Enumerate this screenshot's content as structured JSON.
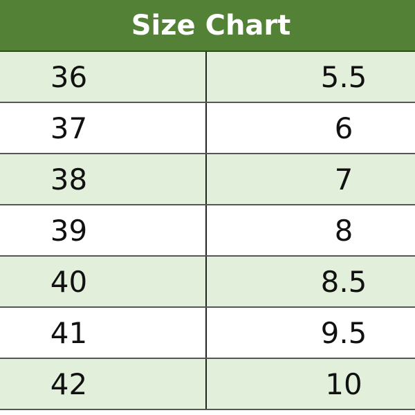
{
  "title": "Size Chart",
  "colors": {
    "header_bg": "#538135",
    "alt_row_bg": "#E2EFDA"
  },
  "rows": [
    {
      "eu": "36",
      "us": "5.5"
    },
    {
      "eu": "37",
      "us": "6"
    },
    {
      "eu": "38",
      "us": "7"
    },
    {
      "eu": "39",
      "us": "8"
    },
    {
      "eu": "40",
      "us": "8.5"
    },
    {
      "eu": "41",
      "us": "9.5"
    },
    {
      "eu": "42",
      "us": "10"
    }
  ]
}
